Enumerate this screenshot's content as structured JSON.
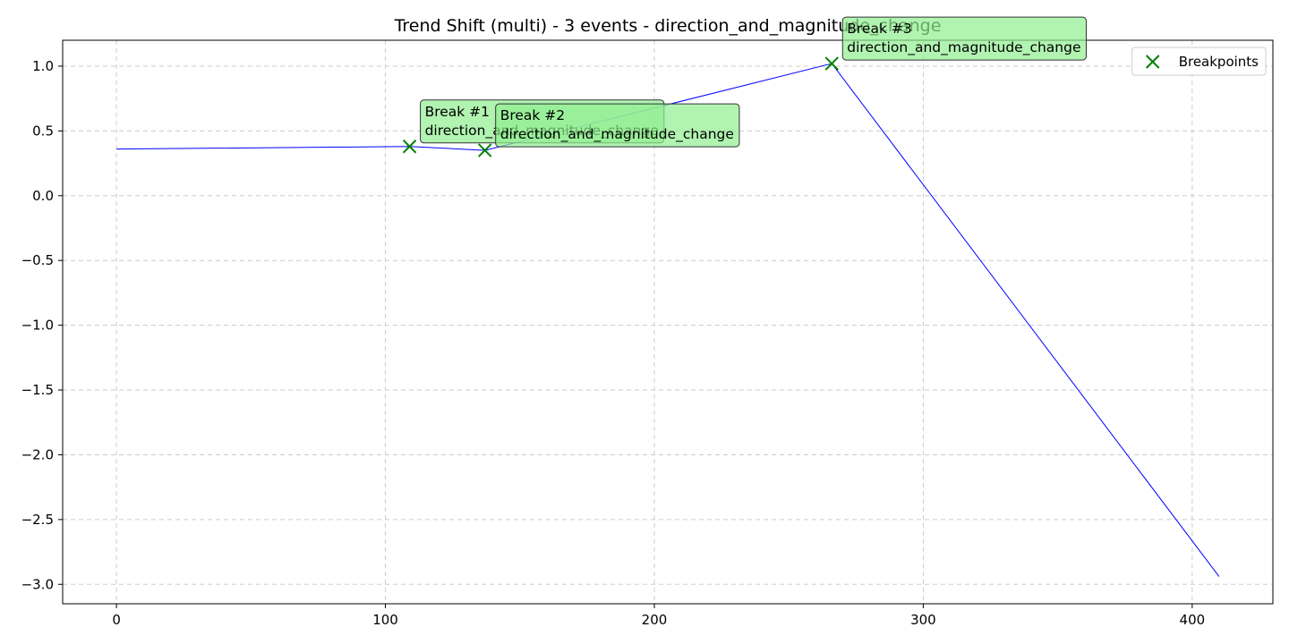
{
  "chart_data": {
    "type": "line",
    "title": "Trend Shift (multi) - 3 events - direction_and_magnitude_change",
    "xlabel": "",
    "ylabel": "",
    "xlim": [
      -20,
      430
    ],
    "ylim": [
      -3.15,
      1.2
    ],
    "xticks": [
      0,
      100,
      200,
      300,
      400
    ],
    "yticks": [
      1.0,
      0.5,
      0.0,
      -0.5,
      -1.0,
      -1.5,
      -2.0,
      -2.5,
      -3.0
    ],
    "xtick_labels": [
      "0",
      "100",
      "200",
      "300",
      "400"
    ],
    "ytick_labels": [
      "1.0",
      "0.5",
      "0.0",
      "−0.5",
      "−1.0",
      "−1.5",
      "−2.0",
      "−2.5",
      "−3.0"
    ],
    "grid": true,
    "series": [
      {
        "color": "#0000ff",
        "x": [
          0,
          109,
          137,
          266,
          410
        ],
        "y": [
          0.36,
          0.38,
          0.35,
          1.02,
          -2.94
        ]
      }
    ],
    "breakpoints": {
      "name": "Breakpoints",
      "color": "#008000",
      "x": [
        109,
        137,
        266
      ],
      "y": [
        0.38,
        0.35,
        1.02
      ]
    },
    "annotations": [
      {
        "line1": "Break #1",
        "line2": "direction_and_magnitude_change"
      },
      {
        "line1": "Break #2",
        "line2": "direction_and_magnitude_change"
      },
      {
        "line1": "Break #3",
        "line2": "direction_and_magnitude_change"
      }
    ],
    "legend_position": "top-right",
    "annotation_box_color": "#90ee90",
    "grid_color": "#cccccc"
  }
}
